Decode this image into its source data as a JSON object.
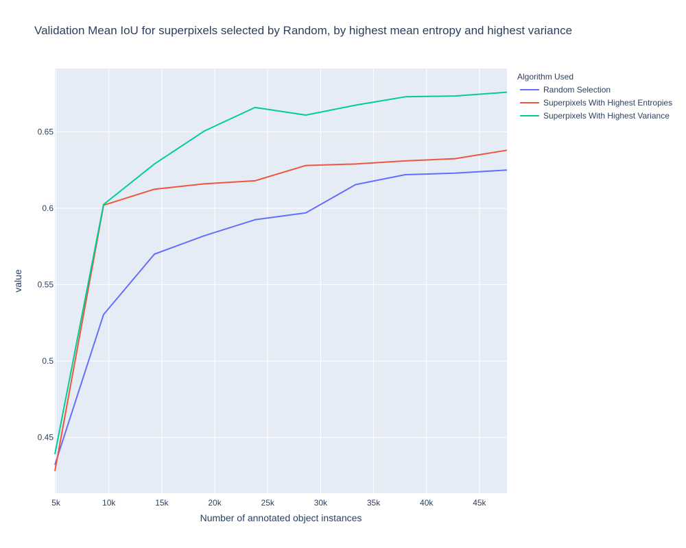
{
  "chart_data": {
    "type": "line",
    "title": "Validation Mean IoU for superpixels selected by Random, by highest mean entropy and highest variance",
    "xlabel": "Number of annotated object instances",
    "ylabel": "value",
    "xlim": [
      4900,
      47600
    ],
    "ylim": [
      0.4135,
      0.6915
    ],
    "x_ticks": [
      5000,
      10000,
      15000,
      20000,
      25000,
      30000,
      35000,
      40000,
      45000
    ],
    "x_tick_labels": [
      "5k",
      "10k",
      "15k",
      "20k",
      "25k",
      "30k",
      "35k",
      "40k",
      "45k"
    ],
    "y_ticks": [
      0.45,
      0.5,
      0.55,
      0.6,
      0.65
    ],
    "y_tick_labels": [
      "0.45",
      "0.5",
      "0.55",
      "0.6",
      "0.65"
    ],
    "grid": true,
    "legend": {
      "title": "Algorithm Used",
      "position": "top-right-outside"
    },
    "x": [
      4900,
      9500,
      14300,
      19000,
      23800,
      28600,
      33300,
      38000,
      42700,
      47600
    ],
    "series": [
      {
        "name": "Random Selection",
        "color": "#636efa",
        "values": [
          0.432,
          0.5305,
          0.57,
          0.582,
          0.5925,
          0.597,
          0.6155,
          0.622,
          0.623,
          0.625
        ]
      },
      {
        "name": "Superpixels With Highest Entropies",
        "color": "#ef553b",
        "values": [
          0.428,
          0.602,
          0.6125,
          0.616,
          0.618,
          0.628,
          0.629,
          0.631,
          0.6325,
          0.638
        ]
      },
      {
        "name": "Superpixels With Highest Variance",
        "color": "#00cc96",
        "values": [
          0.439,
          0.6025,
          0.629,
          0.6505,
          0.666,
          0.661,
          0.6675,
          0.673,
          0.6735,
          0.676
        ]
      }
    ]
  }
}
